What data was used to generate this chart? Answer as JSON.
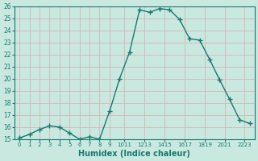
{
  "x": [
    0,
    1,
    2,
    3,
    4,
    5,
    6,
    7,
    8,
    9,
    10,
    11,
    12,
    13,
    14,
    15,
    16,
    17,
    18,
    19,
    20,
    21,
    22,
    23
  ],
  "y": [
    15.1,
    15.4,
    15.8,
    16.1,
    16.0,
    15.5,
    15.0,
    15.2,
    15.0,
    17.3,
    20.0,
    22.2,
    25.7,
    25.5,
    25.8,
    25.7,
    24.9,
    23.3,
    23.2,
    21.6,
    19.9,
    18.3,
    16.6,
    16.3
  ],
  "xlabel": "Humidex (Indice chaleur)",
  "ylim": [
    15,
    26
  ],
  "xlim": [
    -0.5,
    23.5
  ],
  "yticks": [
    15,
    16,
    17,
    18,
    19,
    20,
    21,
    22,
    23,
    24,
    25,
    26
  ],
  "xtick_labels": [
    "0",
    "1",
    "2",
    "3",
    "4",
    "5",
    "6",
    "7",
    "8",
    "9",
    "1011",
    "1213",
    "1415",
    "1617",
    "1819",
    "2021",
    "2223"
  ],
  "xtick_positions": [
    0,
    1,
    2,
    3,
    4,
    5,
    6,
    7,
    8,
    9,
    10.5,
    12.5,
    14.5,
    16.5,
    18.5,
    20.5,
    22.5
  ],
  "line_color": "#1a7a6e",
  "marker_color": "#1a7a6e",
  "bg_color": "#c8e8e0",
  "grid_color": "#d4b8b8",
  "tick_color": "#1a7a6e"
}
